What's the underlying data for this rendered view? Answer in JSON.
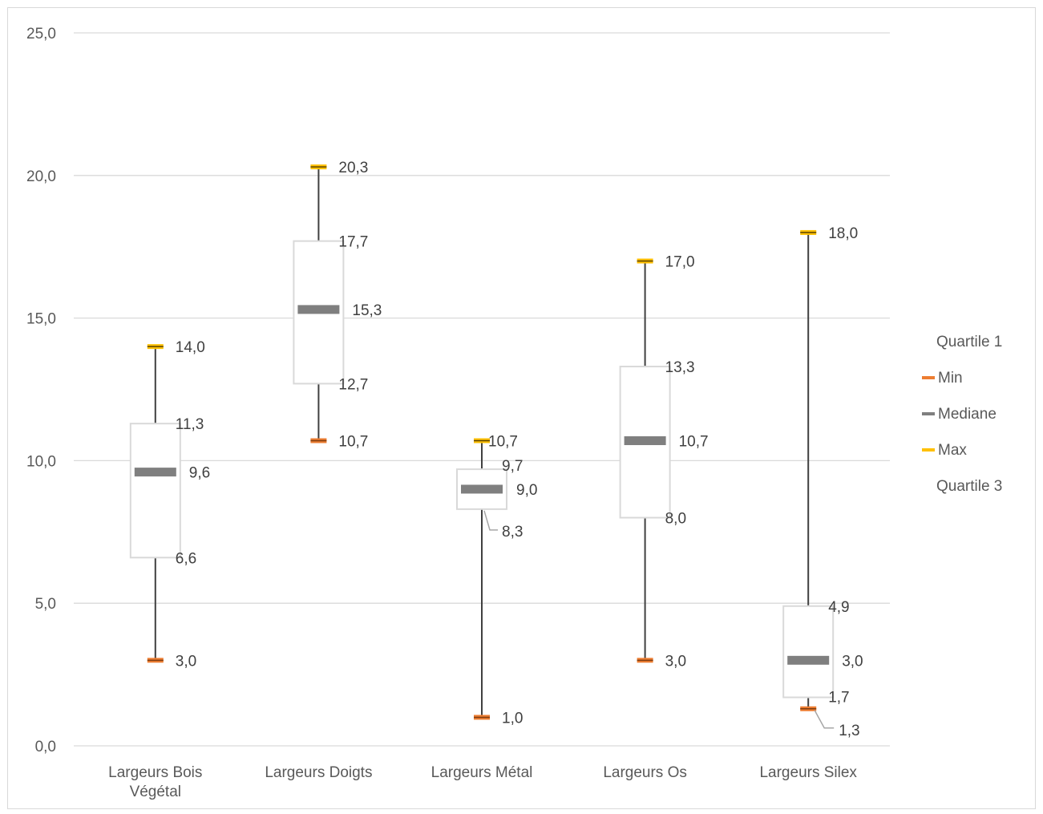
{
  "chart_data": {
    "type": "box",
    "title": "",
    "xlabel": "",
    "ylabel": "",
    "ylim": [
      0,
      25
    ],
    "yticks": [
      0,
      5,
      10,
      15,
      20,
      25
    ],
    "ytick_labels": [
      "0,0",
      "5,0",
      "10,0",
      "15,0",
      "20,0",
      "25,0"
    ],
    "grid": true,
    "legend_position": "right",
    "categories": [
      "Largeurs Bois Végétal",
      "Largeurs Doigts",
      "Largeurs Métal",
      "Largeurs Os",
      "Largeurs Silex"
    ],
    "category_lines": [
      [
        "Largeurs Bois",
        "Végétal"
      ],
      [
        "Largeurs Doigts"
      ],
      [
        "Largeurs Métal"
      ],
      [
        "Largeurs Os"
      ],
      [
        "Largeurs Silex"
      ]
    ],
    "series": [
      {
        "name": "Quartile 1",
        "values": [
          6.6,
          12.7,
          8.3,
          8.0,
          1.7
        ],
        "labels": [
          "6,6",
          "12,7",
          "8,3",
          "8,0",
          "1,7"
        ]
      },
      {
        "name": "Min",
        "values": [
          3.0,
          10.7,
          1.0,
          3.0,
          1.3
        ],
        "labels": [
          "3,0",
          "10,7",
          "1,0",
          "3,0",
          "1,3"
        ]
      },
      {
        "name": "Mediane",
        "values": [
          9.6,
          15.3,
          9.0,
          10.7,
          3.0
        ],
        "labels": [
          "9,6",
          "15,3",
          "9,0",
          "10,7",
          "3,0"
        ]
      },
      {
        "name": "Max",
        "values": [
          14.0,
          20.3,
          10.7,
          17.0,
          18.0
        ],
        "labels": [
          "14,0",
          "20,3",
          "10,7",
          "17,0",
          "18,0"
        ]
      },
      {
        "name": "Quartile 3",
        "values": [
          11.3,
          17.7,
          9.7,
          13.3,
          4.9
        ],
        "labels": [
          "11,3",
          "17,7",
          "9,7",
          "13,3",
          "4,9"
        ]
      }
    ],
    "colors": {
      "min": "#ed7d31",
      "max": "#ffc000",
      "median": "#7f7f7f",
      "box": "#d9d9d9",
      "whisker": "#404040",
      "grid": "#d9d9d9"
    }
  }
}
